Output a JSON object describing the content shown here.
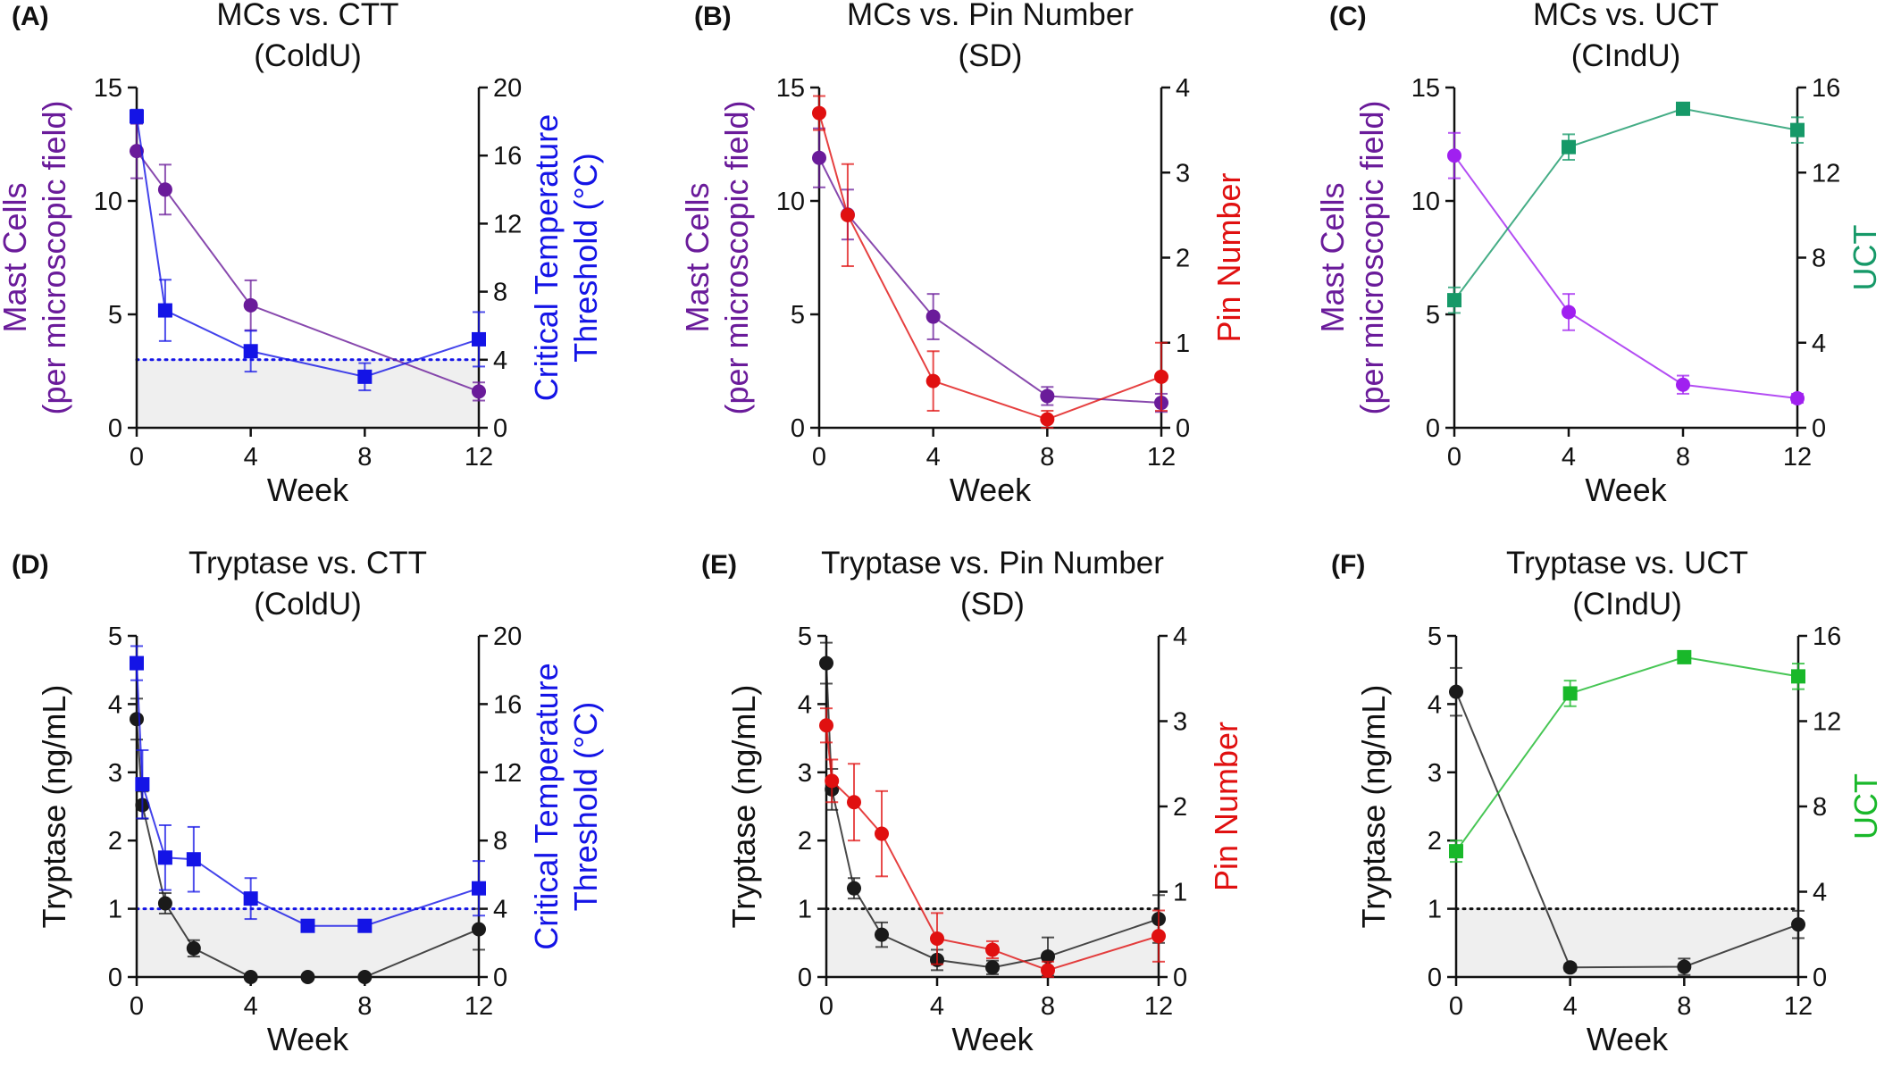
{
  "colors": {
    "mast_cells_left": "#6a1b9a",
    "mast_cells_right": "#a020f0",
    "ctt": "#1414e6",
    "pin_number": "#e01010",
    "uct_panel_c": "#169968",
    "uct_panel_f": "#19b82a",
    "tryptase": "#1a1a1a",
    "threshold_band": "#efefef"
  },
  "chart_data": [
    {
      "type": "line",
      "panel": "(A)",
      "title": [
        "MCs vs. CTT",
        "(ColdU)"
      ],
      "xlabel": "Week",
      "x_ticks": [
        0,
        4,
        8,
        12
      ],
      "xlim": [
        0,
        12
      ],
      "left_axis": {
        "label": [
          "Mast Cells",
          "(per microscopic field)"
        ],
        "label_color": "#6a1b9a",
        "ylim": [
          0,
          15
        ],
        "ticks": [
          0,
          5,
          10,
          15
        ]
      },
      "right_axis": {
        "label": [
          "Critical Temperature",
          "Threshold  (°C)"
        ],
        "label_color": "#1414e6",
        "ylim": [
          0,
          20
        ],
        "ticks": [
          0,
          4,
          8,
          12,
          16,
          20
        ]
      },
      "threshold": {
        "axis": "right",
        "value": 4,
        "line": "dotted",
        "color": "#1414e6",
        "shaded_below": true
      },
      "series": [
        {
          "axis": "left",
          "marker": "circle",
          "color": "#6a1b9a",
          "x": [
            0,
            1,
            4,
            12
          ],
          "y": [
            12.2,
            10.5,
            5.4,
            1.6
          ],
          "err": [
            1.2,
            1.1,
            1.1,
            0.4
          ]
        },
        {
          "axis": "right",
          "marker": "square",
          "color": "#1414e6",
          "x": [
            0,
            1,
            4,
            8,
            12
          ],
          "y": [
            18.3,
            6.9,
            4.5,
            3.0,
            5.2
          ],
          "err": [
            0.4,
            1.8,
            1.2,
            0.8,
            1.6
          ]
        }
      ]
    },
    {
      "type": "line",
      "panel": "(B)",
      "title": [
        "MCs vs. Pin Number",
        "(SD)"
      ],
      "xlabel": "Week",
      "x_ticks": [
        0,
        4,
        8,
        12
      ],
      "xlim": [
        0,
        12
      ],
      "left_axis": {
        "label": [
          "Mast Cells",
          "(per microscopic field)"
        ],
        "label_color": "#6a1b9a",
        "ylim": [
          0,
          15
        ],
        "ticks": [
          0,
          5,
          10,
          15
        ]
      },
      "right_axis": {
        "label": [
          "Pin Number"
        ],
        "label_color": "#e01010",
        "ylim": [
          0,
          4
        ],
        "ticks": [
          0,
          1,
          2,
          3,
          4
        ]
      },
      "series": [
        {
          "axis": "left",
          "marker": "circle",
          "color": "#6a1b9a",
          "x": [
            0,
            1,
            4,
            8,
            12
          ],
          "y": [
            11.9,
            9.4,
            4.9,
            1.4,
            1.1
          ],
          "err": [
            1.3,
            1.1,
            1.0,
            0.4,
            0.4
          ]
        },
        {
          "axis": "right",
          "marker": "circle",
          "color": "#e01010",
          "x": [
            0,
            1,
            4,
            8,
            12
          ],
          "y": [
            3.7,
            2.5,
            0.55,
            0.1,
            0.6
          ],
          "err": [
            0.2,
            0.6,
            0.35,
            0.1,
            0.4
          ]
        }
      ]
    },
    {
      "type": "line",
      "panel": "(C)",
      "title": [
        "MCs vs. UCT",
        "(CIndU)"
      ],
      "xlabel": "Week",
      "x_ticks": [
        0,
        4,
        8,
        12
      ],
      "xlim": [
        0,
        12
      ],
      "left_axis": {
        "label": [
          "Mast Cells",
          "(per microscopic field)"
        ],
        "label_color": "#6a1b9a",
        "ylim": [
          0,
          15
        ],
        "ticks": [
          0,
          5,
          10,
          15
        ]
      },
      "right_axis": {
        "label": [
          "UCT"
        ],
        "label_color": "#169968",
        "ylim": [
          0,
          16
        ],
        "ticks": [
          0,
          4,
          8,
          12,
          16
        ]
      },
      "series": [
        {
          "axis": "left",
          "marker": "circle",
          "color": "#a020f0",
          "x": [
            0,
            4,
            8,
            12
          ],
          "y": [
            12.0,
            5.1,
            1.9,
            1.3
          ],
          "err": [
            1.0,
            0.8,
            0.4,
            0.2
          ]
        },
        {
          "axis": "right",
          "marker": "square",
          "color": "#169968",
          "x": [
            0,
            4,
            8,
            12
          ],
          "y": [
            6.0,
            13.2,
            15.0,
            14.0
          ],
          "err": [
            0.6,
            0.6,
            0.2,
            0.6
          ]
        }
      ]
    },
    {
      "type": "line",
      "panel": "(D)",
      "title": [
        "Tryptase vs. CTT",
        "(ColdU)"
      ],
      "xlabel": "Week",
      "x_ticks": [
        0,
        4,
        8,
        12
      ],
      "xlim": [
        0,
        12
      ],
      "left_axis": {
        "label": [
          "Tryptase (ng/mL)"
        ],
        "label_color": "#111111",
        "ylim": [
          0,
          5
        ],
        "ticks": [
          0,
          1,
          2,
          3,
          4,
          5
        ]
      },
      "right_axis": {
        "label": [
          "Critical Temperature",
          "Threshold  (°C)"
        ],
        "label_color": "#1414e6",
        "ylim": [
          0,
          20
        ],
        "ticks": [
          0,
          4,
          8,
          12,
          16,
          20
        ]
      },
      "threshold": {
        "axis": "left",
        "value": 1,
        "line": "dotted",
        "color": "#1414e6",
        "shaded_below": true
      },
      "series": [
        {
          "axis": "left",
          "marker": "circle",
          "color": "#1a1a1a",
          "x": [
            0,
            0.2,
            1,
            2,
            4,
            6,
            8,
            12
          ],
          "y": [
            3.78,
            2.52,
            1.08,
            0.42,
            0.0,
            0.0,
            0.0,
            0.7
          ],
          "err": [
            0.3,
            0.2,
            0.15,
            0.12,
            0,
            0,
            0,
            0.3
          ]
        },
        {
          "axis": "right",
          "marker": "square",
          "color": "#1414e6",
          "x": [
            0,
            0.2,
            1,
            2,
            4,
            6,
            8,
            12
          ],
          "y": [
            18.4,
            11.3,
            7.0,
            6.9,
            4.6,
            3.0,
            3.0,
            5.2
          ],
          "err": [
            1.0,
            2.0,
            1.9,
            1.9,
            1.2,
            0,
            0,
            1.6
          ]
        }
      ]
    },
    {
      "type": "line",
      "panel": "(E)",
      "title": [
        "Tryptase vs. Pin Number",
        "(SD)"
      ],
      "xlabel": "Week",
      "x_ticks": [
        0,
        4,
        8,
        12
      ],
      "xlim": [
        0,
        12
      ],
      "left_axis": {
        "label": [
          "Tryptase (ng/mL)"
        ],
        "label_color": "#111111",
        "ylim": [
          0,
          5
        ],
        "ticks": [
          0,
          1,
          2,
          3,
          4,
          5
        ]
      },
      "right_axis": {
        "label": [
          "Pin Number"
        ],
        "label_color": "#e01010",
        "ylim": [
          0,
          4
        ],
        "ticks": [
          0,
          1,
          2,
          3,
          4
        ]
      },
      "threshold": {
        "axis": "left",
        "value": 1,
        "line": "dotted",
        "color": "#111111",
        "shaded_below": true
      },
      "series": [
        {
          "axis": "left",
          "marker": "circle",
          "color": "#1a1a1a",
          "x": [
            0,
            0.2,
            1,
            2,
            4,
            6,
            8,
            12
          ],
          "y": [
            4.6,
            2.75,
            1.3,
            0.62,
            0.25,
            0.14,
            0.3,
            0.85
          ],
          "err": [
            0.3,
            0.3,
            0.15,
            0.18,
            0.15,
            0.1,
            0.28,
            0.35
          ]
        },
        {
          "axis": "right",
          "marker": "circle",
          "color": "#e01010",
          "x": [
            0,
            0.2,
            1,
            2,
            4,
            6,
            8,
            12
          ],
          "y": [
            2.95,
            2.3,
            2.05,
            1.68,
            0.45,
            0.32,
            0.08,
            0.48
          ],
          "err": [
            0.2,
            0.25,
            0.45,
            0.5,
            0.3,
            0.1,
            0.1,
            0.3
          ]
        }
      ]
    },
    {
      "type": "line",
      "panel": "(F)",
      "title": [
        "Tryptase vs. UCT",
        "(CIndU)"
      ],
      "xlabel": "Week",
      "x_ticks": [
        0,
        4,
        8,
        12
      ],
      "xlim": [
        0,
        12
      ],
      "left_axis": {
        "label": [
          "Tryptase (ng/mL)"
        ],
        "label_color": "#111111",
        "ylim": [
          0,
          5
        ],
        "ticks": [
          0,
          1,
          2,
          3,
          4,
          5
        ]
      },
      "right_axis": {
        "label": [
          "UCT"
        ],
        "label_color": "#19b82a",
        "ylim": [
          0,
          16
        ],
        "ticks": [
          0,
          4,
          8,
          12,
          16
        ]
      },
      "threshold": {
        "axis": "left",
        "value": 1,
        "line": "dotted",
        "color": "#111111",
        "shaded_below": true
      },
      "series": [
        {
          "axis": "left",
          "marker": "circle",
          "color": "#1a1a1a",
          "x": [
            0,
            4,
            8,
            12
          ],
          "y": [
            4.18,
            0.14,
            0.15,
            0.77
          ],
          "err": [
            0.35,
            0.05,
            0.12,
            0.2
          ]
        },
        {
          "axis": "right",
          "marker": "square",
          "color": "#19b82a",
          "x": [
            0,
            4,
            8,
            12
          ],
          "y": [
            5.9,
            13.3,
            15.0,
            14.1
          ],
          "err": [
            0.5,
            0.6,
            0.2,
            0.6
          ]
        }
      ]
    }
  ]
}
